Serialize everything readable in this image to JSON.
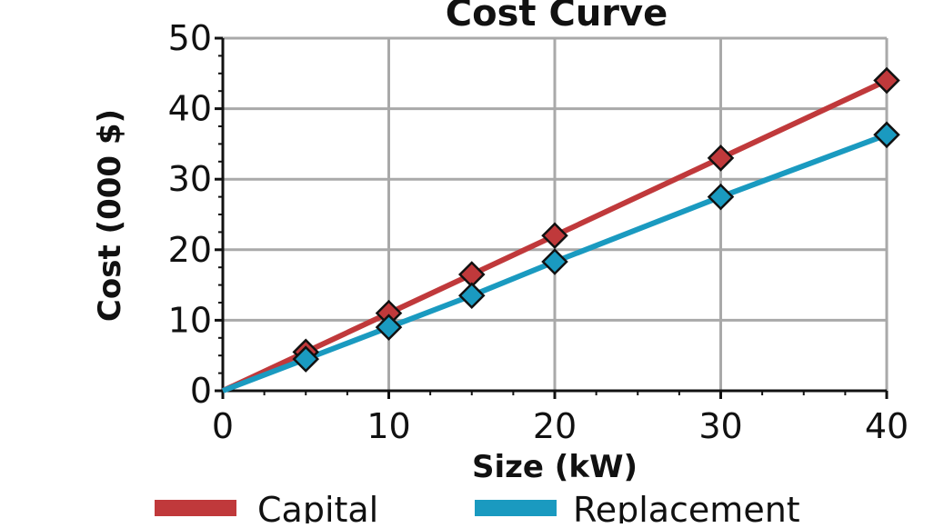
{
  "chart_data": {
    "type": "line",
    "title": "Cost Curve",
    "xlabel": "Size (kW)",
    "ylabel": "Cost (000 $)",
    "xlim": [
      0,
      40
    ],
    "ylim": [
      0,
      50
    ],
    "xticks": [
      0,
      10,
      20,
      30,
      40
    ],
    "yticks": [
      0,
      10,
      20,
      30,
      40,
      50
    ],
    "grid": true,
    "legend_position": "bottom",
    "series": [
      {
        "name": "Capital",
        "color": "#c0393b",
        "x": [
          0,
          5,
          10,
          15,
          20,
          30,
          40
        ],
        "y": [
          0,
          5.5,
          11,
          16.5,
          22,
          33,
          44
        ],
        "markers": [
          false,
          true,
          true,
          true,
          true,
          true,
          true
        ]
      },
      {
        "name": "Replacement",
        "color": "#1a9ac0",
        "x": [
          0,
          5,
          10,
          15,
          20,
          30,
          40
        ],
        "y": [
          0,
          4.5,
          9,
          13.5,
          18.3,
          27.5,
          36.3
        ],
        "markers": [
          false,
          true,
          true,
          true,
          true,
          true,
          true
        ]
      }
    ]
  }
}
